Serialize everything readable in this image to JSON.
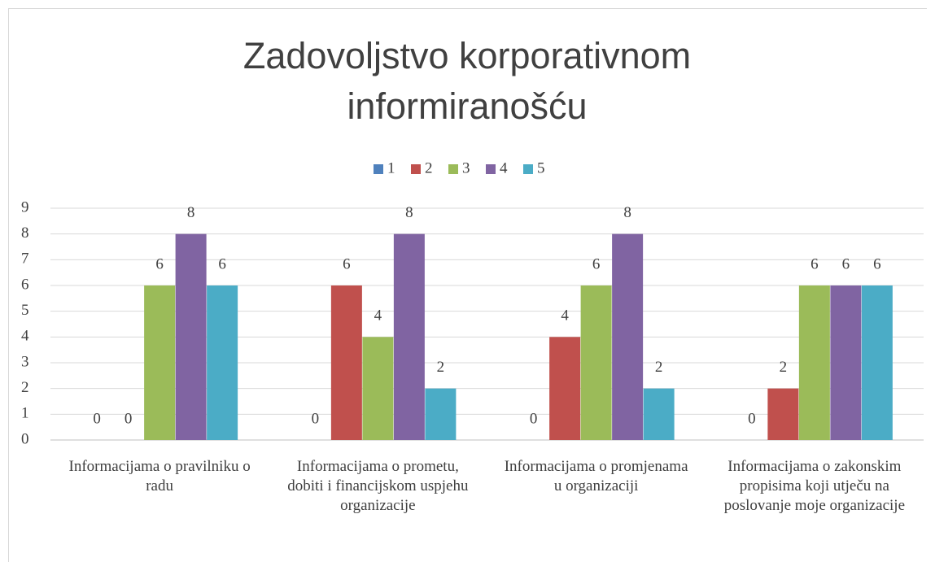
{
  "chart_data": {
    "type": "bar",
    "title": "Zadovoljstvo korporativnom informiranošću",
    "categories": [
      "Informacijama o pravilniku o radu",
      "Informacijama o prometu, dobiti i financijskom uspjehu organizacije",
      "Informacijama o promjenama u organizaciji",
      "Informacijama o zakonskim propisima koji utječu na poslovanje moje organizacije"
    ],
    "series": [
      {
        "name": "1",
        "color": "#4f81bd",
        "values": [
          0,
          0,
          0,
          0
        ]
      },
      {
        "name": "2",
        "color": "#c0504d",
        "values": [
          0,
          6,
          4,
          2
        ]
      },
      {
        "name": "3",
        "color": "#9bbb59",
        "values": [
          6,
          4,
          6,
          6
        ]
      },
      {
        "name": "4",
        "color": "#8064a2",
        "values": [
          8,
          8,
          8,
          6
        ]
      },
      {
        "name": "5",
        "color": "#4bacc6",
        "values": [
          6,
          2,
          2,
          6
        ]
      }
    ],
    "ylim": [
      0,
      9
    ],
    "yticks": [
      0,
      1,
      2,
      3,
      4,
      5,
      6,
      7,
      8,
      9
    ],
    "grid": true,
    "legend": "top"
  }
}
